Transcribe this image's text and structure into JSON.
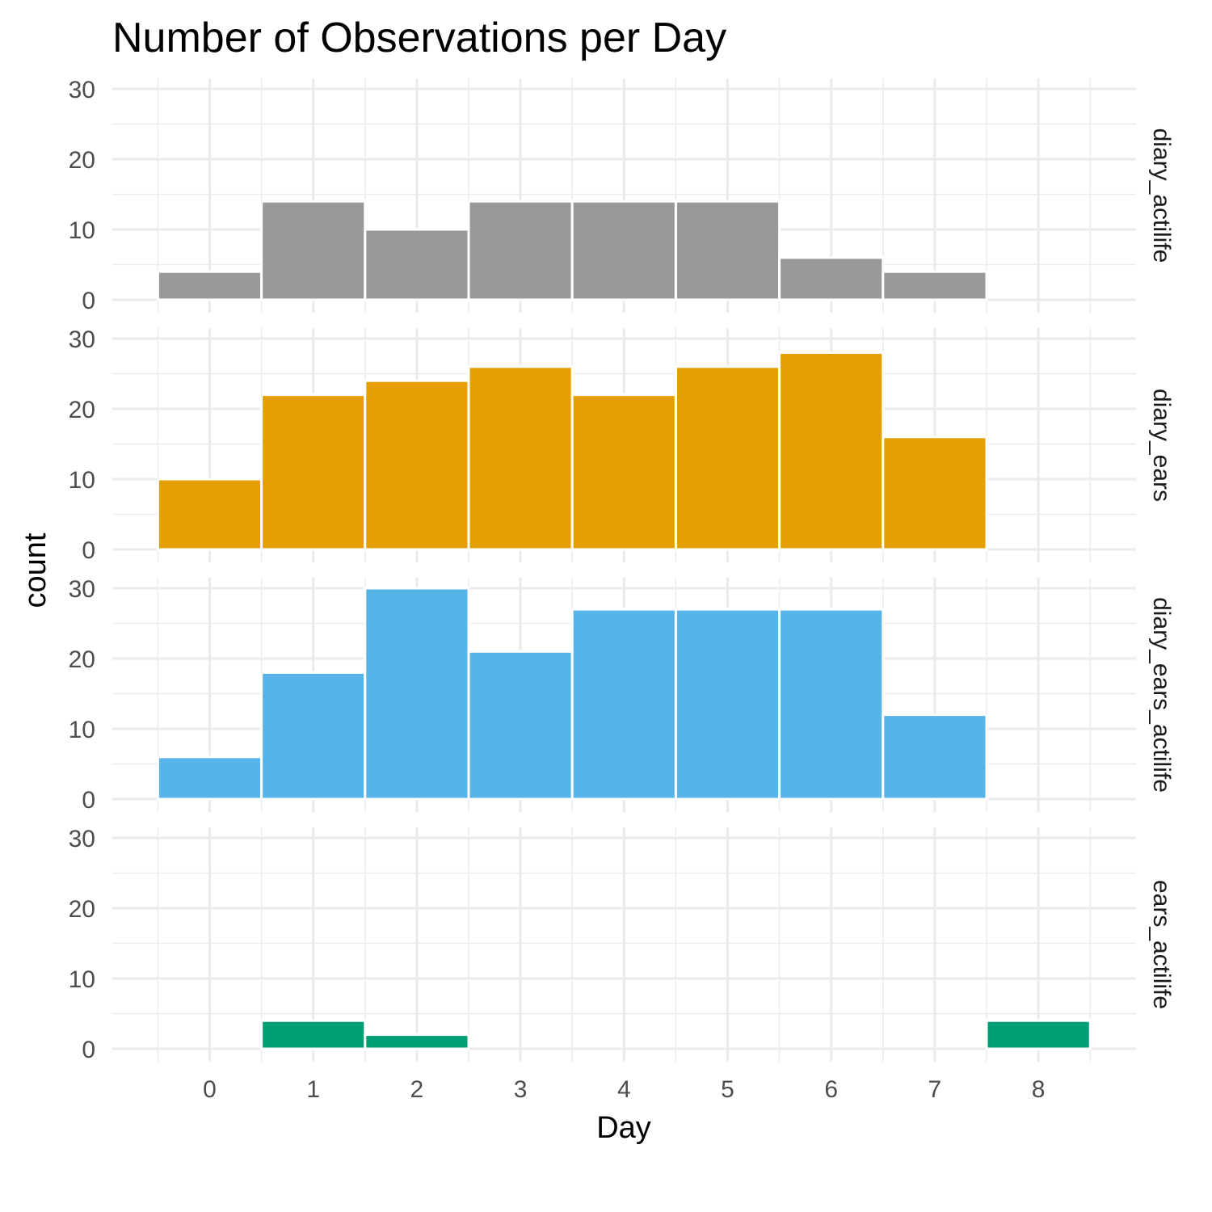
{
  "chart_data": {
    "type": "bar",
    "title": "Number of Observations per Day",
    "xlabel": "Day",
    "ylabel": "count",
    "x_ticks": [
      0,
      1,
      2,
      3,
      4,
      5,
      6,
      7,
      8
    ],
    "y_ticks": [
      0,
      10,
      20,
      30
    ],
    "xlim": [
      -0.5,
      8.5
    ],
    "ylim": [
      0,
      30
    ],
    "grid": true,
    "legend": "none",
    "facets": [
      {
        "label": "diary_actilife",
        "color": "#999999",
        "values": [
          4,
          14,
          10,
          14,
          14,
          14,
          6,
          4,
          0
        ]
      },
      {
        "label": "diary_ears",
        "color": "#E69F00",
        "values": [
          10,
          22,
          24,
          26,
          22,
          26,
          28,
          16,
          0
        ]
      },
      {
        "label": "diary_ears_actilife",
        "color": "#56B4E9",
        "values": [
          6,
          18,
          30,
          21,
          27,
          27,
          27,
          12,
          0
        ]
      },
      {
        "label": "ears_actilife",
        "color": "#009E73",
        "values": [
          0,
          4,
          2,
          0,
          0,
          0,
          0,
          0,
          4
        ]
      }
    ]
  }
}
